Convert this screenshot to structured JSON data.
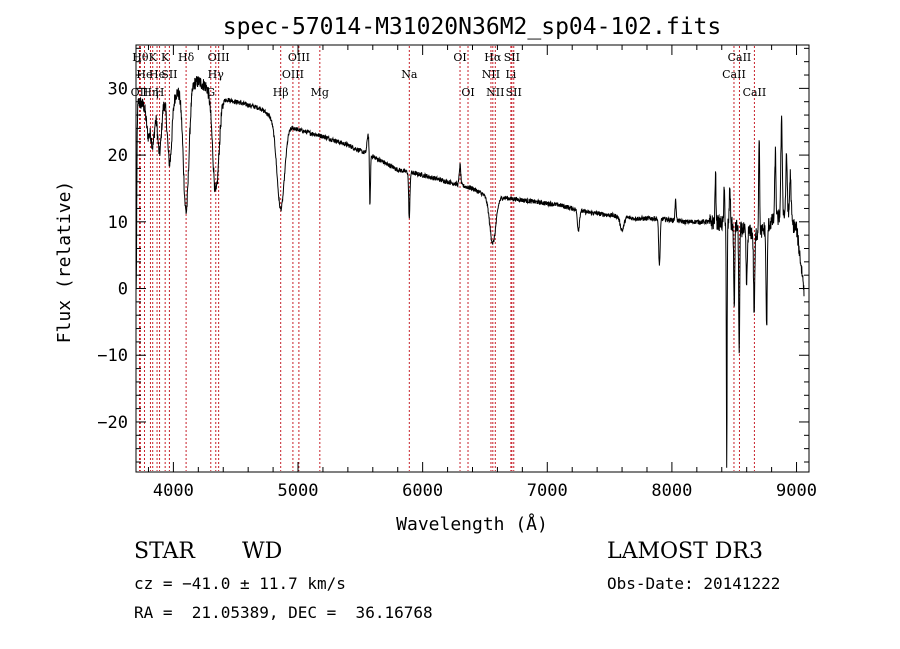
{
  "chart_data": {
    "type": "line",
    "title": "spec-57014-M31020N36M2_sp04-102.fits",
    "xlabel": "Wavelength (Å)",
    "ylabel": "Flux (relative)",
    "xlim": [
      3700,
      9100
    ],
    "ylim": [
      -27.5,
      36.5
    ],
    "x_ticks": [
      4000,
      5000,
      6000,
      7000,
      8000,
      9000
    ],
    "y_ticks": [
      -20,
      -10,
      0,
      10,
      20,
      30
    ],
    "grid": false,
    "continuum": [
      [
        3700,
        25
      ],
      [
        3720,
        28
      ],
      [
        3800,
        27
      ],
      [
        3900,
        28.5
      ],
      [
        4000,
        29
      ],
      [
        4100,
        30.5
      ],
      [
        4200,
        31
      ],
      [
        4300,
        30
      ],
      [
        4400,
        28.5
      ],
      [
        4500,
        28
      ],
      [
        4600,
        27.5
      ],
      [
        4700,
        27
      ],
      [
        4800,
        25.5
      ],
      [
        4900,
        24.5
      ],
      [
        5000,
        23.8
      ],
      [
        5200,
        22.8
      ],
      [
        5400,
        21.5
      ],
      [
        5600,
        19.8
      ],
      [
        5700,
        18.8
      ],
      [
        5800,
        17.8
      ],
      [
        6000,
        17
      ],
      [
        6200,
        16
      ],
      [
        6400,
        15
      ],
      [
        6500,
        14
      ],
      [
        6700,
        13.5
      ],
      [
        6900,
        13
      ],
      [
        7100,
        12.5
      ],
      [
        7300,
        11.5
      ],
      [
        7500,
        11
      ],
      [
        7700,
        10.5
      ],
      [
        7900,
        10.5
      ],
      [
        8100,
        10
      ],
      [
        8300,
        10
      ],
      [
        8500,
        9.5
      ],
      [
        8600,
        8.5
      ],
      [
        8700,
        8.2
      ],
      [
        8800,
        10
      ],
      [
        8900,
        11
      ],
      [
        9000,
        9
      ],
      [
        9060,
        0
      ]
    ],
    "features": [
      {
        "x": 3702,
        "dy": -25,
        "w": 4
      },
      {
        "x": 3798,
        "dy": -4,
        "w": 14
      },
      {
        "x": 3835,
        "dy": -6,
        "w": 14
      },
      {
        "x": 3889,
        "dy": -8,
        "w": 16
      },
      {
        "x": 3970,
        "dy": -10,
        "w": 18
      },
      {
        "x": 4102,
        "dy": -19,
        "w": 22
      },
      {
        "x": 4340,
        "dy": -15,
        "w": 25
      },
      {
        "x": 4861,
        "dy": -13,
        "w": 30
      },
      {
        "x": 5562,
        "dy": 3,
        "w": 8
      },
      {
        "x": 5577,
        "dy": -8,
        "w": 4
      },
      {
        "x": 5893,
        "dy": -7,
        "w": 5
      },
      {
        "x": 6300,
        "dy": 3,
        "w": 6
      },
      {
        "x": 6563,
        "dy": -7,
        "w": 25
      },
      {
        "x": 7250,
        "dy": -3,
        "w": 8
      },
      {
        "x": 7600,
        "dy": -2,
        "w": 15
      },
      {
        "x": 7900,
        "dy": -7,
        "w": 6
      },
      {
        "x": 8030,
        "dy": 3,
        "w": 5
      },
      {
        "x": 8350,
        "dy": 7,
        "w": 4
      },
      {
        "x": 8420,
        "dy": 5,
        "w": 4
      },
      {
        "x": 8440,
        "dy": -37,
        "w": 3
      },
      {
        "x": 8465,
        "dy": 6,
        "w": 4
      },
      {
        "x": 8500,
        "dy": -13,
        "w": 4
      },
      {
        "x": 8540,
        "dy": -19,
        "w": 4
      },
      {
        "x": 8600,
        "dy": -8,
        "w": 5
      },
      {
        "x": 8660,
        "dy": -12,
        "w": 5
      },
      {
        "x": 8700,
        "dy": 15,
        "w": 4
      },
      {
        "x": 8760,
        "dy": -15,
        "w": 5
      },
      {
        "x": 8830,
        "dy": 10,
        "w": 5
      },
      {
        "x": 8880,
        "dy": 14,
        "w": 6
      },
      {
        "x": 8920,
        "dy": 9,
        "w": 6
      },
      {
        "x": 8950,
        "dy": 7,
        "w": 6
      }
    ],
    "lines": [
      {
        "wave": 3728,
        "label": "OII",
        "row": 2
      },
      {
        "wave": 3735,
        "label": "Hθ",
        "row": 0
      },
      {
        "wave": 3768,
        "label": "He",
        "row": 1
      },
      {
        "wave": 3816,
        "label": "Hη",
        "row": 2
      },
      {
        "wave": 3834,
        "label": "K",
        "row": 0
      },
      {
        "wave": 3869,
        "label": "He",
        "row": 1
      },
      {
        "wave": 3889,
        "label": "H",
        "row": 2
      },
      {
        "wave": 3934,
        "label": "K",
        "row": 0
      },
      {
        "wave": 3968,
        "label": "SII",
        "row": 1
      },
      {
        "wave": 4102,
        "label": "Hδ",
        "row": 0
      },
      {
        "wave": 4300,
        "label": "G",
        "row": 2
      },
      {
        "wave": 4340,
        "label": "Hγ",
        "row": 1
      },
      {
        "wave": 4363,
        "label": "OIII",
        "row": 0
      },
      {
        "wave": 4861,
        "label": "Hβ",
        "row": 2
      },
      {
        "wave": 4959,
        "label": "OIII",
        "row": 1
      },
      {
        "wave": 5007,
        "label": "OIII",
        "row": 0
      },
      {
        "wave": 5175,
        "label": "Mg",
        "row": 2
      },
      {
        "wave": 5893,
        "label": "Na",
        "row": 1
      },
      {
        "wave": 6300,
        "label": "OI",
        "row": 0
      },
      {
        "wave": 6364,
        "label": "OI",
        "row": 2
      },
      {
        "wave": 6548,
        "label": "NII",
        "row": 1
      },
      {
        "wave": 6563,
        "label": "Hα",
        "row": 0
      },
      {
        "wave": 6583,
        "label": "NII",
        "row": 2
      },
      {
        "wave": 6708,
        "label": "Li",
        "row": 1
      },
      {
        "wave": 6716,
        "label": "SII",
        "row": 0
      },
      {
        "wave": 6731,
        "label": "SII",
        "row": 2
      },
      {
        "wave": 8498,
        "label": "CaII",
        "row": 1
      },
      {
        "wave": 8542,
        "label": "CaII",
        "row": 0
      },
      {
        "wave": 8662,
        "label": "CaII",
        "row": 2
      }
    ]
  },
  "info": {
    "object_class": "STAR",
    "subclass": "WD",
    "survey": "LAMOST DR3",
    "redshift": "cz = −41.0 ± 11.7 km/s",
    "obs_date": "Obs-Date: 20141222",
    "coordinates": "RA =  21.05389, DEC =  36.16768"
  }
}
